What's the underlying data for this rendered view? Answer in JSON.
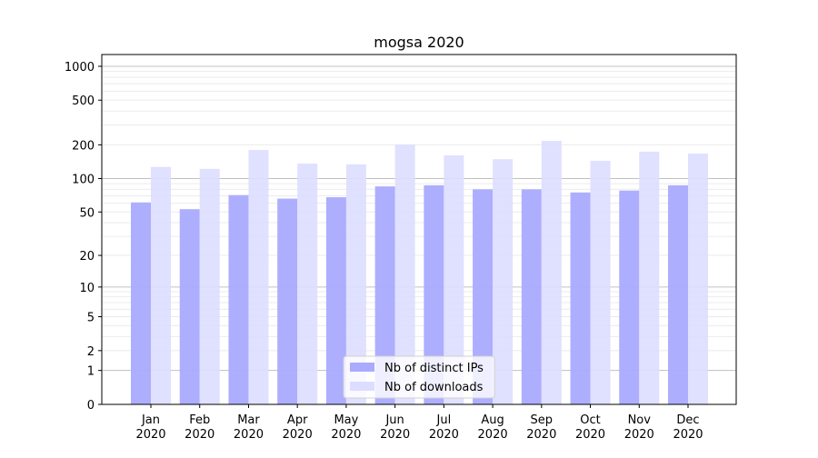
{
  "chart_data": {
    "type": "bar",
    "title": "mogsa 2020",
    "xlabel": "",
    "ylabel": "",
    "yscale": "symlog",
    "ylim": [
      0,
      1300
    ],
    "yticks": [
      0,
      1,
      2,
      5,
      10,
      20,
      50,
      100,
      200,
      500,
      1000
    ],
    "categories": [
      "Jan\n2020",
      "Feb\n2020",
      "Mar\n2020",
      "Apr\n2020",
      "May\n2020",
      "Jun\n2020",
      "Jul\n2020",
      "Aug\n2020",
      "Sep\n2020",
      "Oct\n2020",
      "Nov\n2020",
      "Dec\n2020"
    ],
    "series": [
      {
        "name": "Nb of distinct IPs",
        "color": "#aaaaff",
        "values": [
          61,
          53,
          71,
          66,
          68,
          85,
          87,
          80,
          80,
          75,
          78,
          87
        ]
      },
      {
        "name": "Nb of downloads",
        "color": "#ddddff",
        "values": [
          127,
          122,
          180,
          136,
          134,
          201,
          161,
          149,
          217,
          144,
          174,
          167
        ]
      }
    ],
    "grid": true,
    "legend_position": "bottom-center"
  }
}
